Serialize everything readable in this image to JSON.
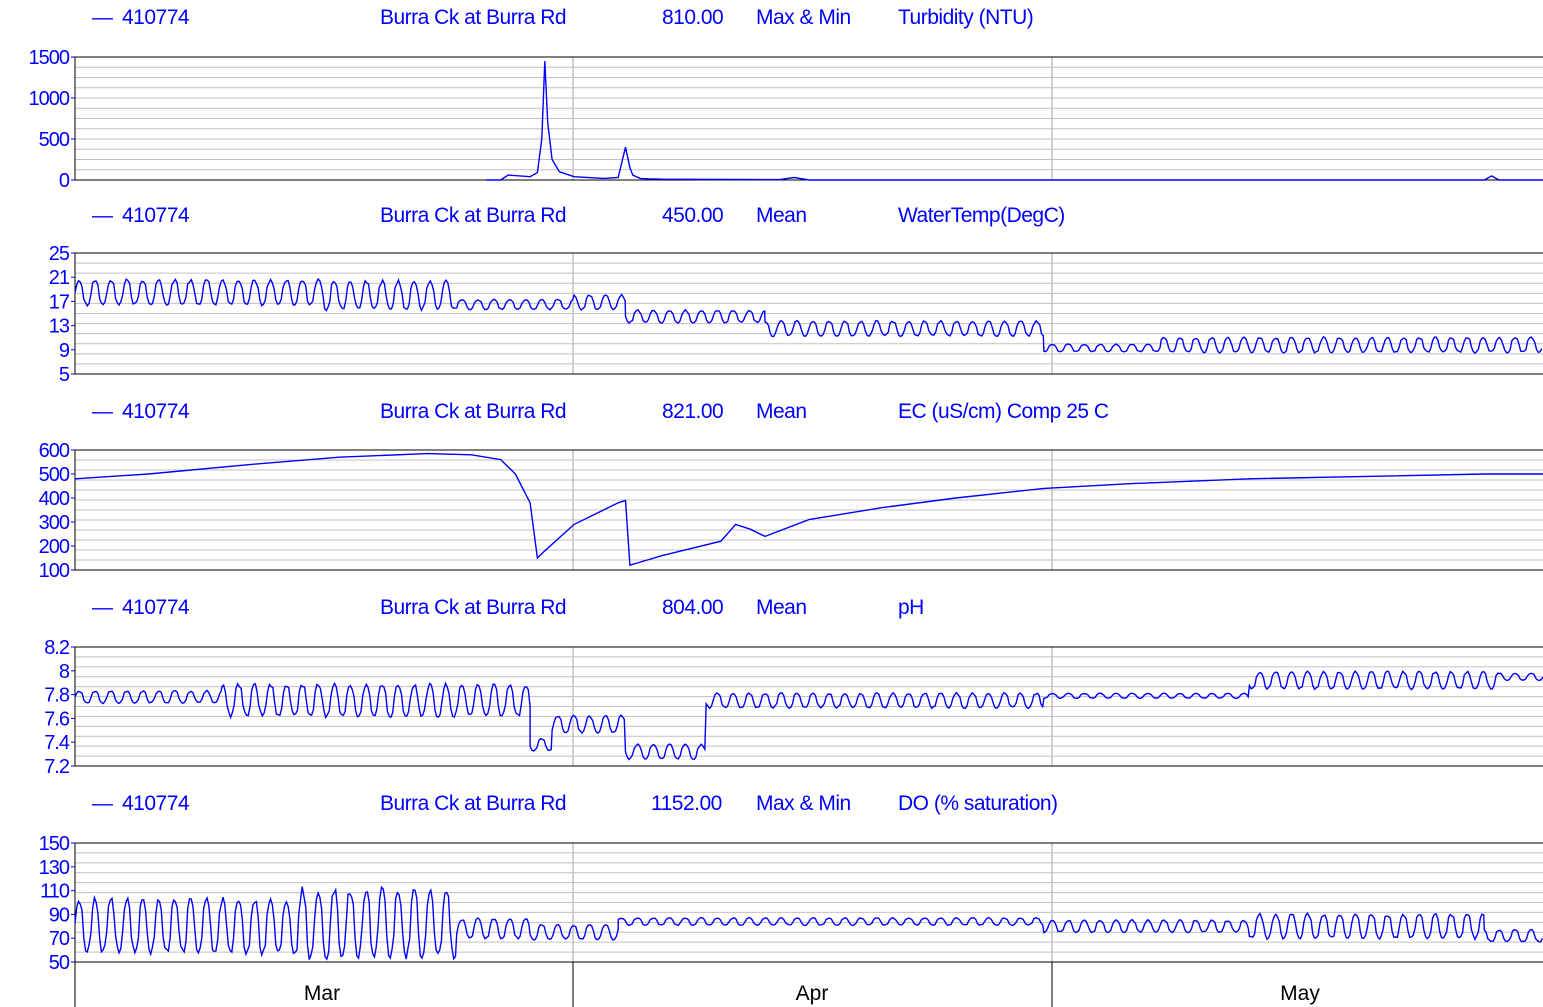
{
  "colors": {
    "series": "#0000ff",
    "grid": "#c0c0c0",
    "frame": "#000000",
    "text": "#0000ff"
  },
  "time_axis": {
    "labels": [
      "Mar",
      "Apr",
      "May"
    ]
  },
  "chart_data": [
    {
      "type": "line",
      "header": {
        "marker": "—",
        "site_id": "410774",
        "site_name": "Burra Ck at Burra Rd",
        "code": "810.00",
        "stat": "Max & Min",
        "variable": "Turbidity (NTU)"
      },
      "ylim": [
        0,
        1500
      ],
      "yticks": [
        "1500",
        "1000",
        "500",
        "0"
      ],
      "ytick_values": [
        1500,
        1000,
        500,
        0
      ],
      "x": [
        0.28,
        0.29,
        0.295,
        0.31,
        0.315,
        0.318,
        0.32,
        0.322,
        0.325,
        0.33,
        0.34,
        0.36,
        0.37,
        0.375,
        0.378,
        0.38,
        0.385,
        0.39,
        0.4,
        0.42,
        0.45,
        0.48,
        0.49,
        0.5,
        0.75,
        0.96,
        0.965,
        0.97,
        1.0
      ],
      "values": [
        0,
        0,
        60,
        40,
        90,
        500,
        1450,
        700,
        250,
        100,
        40,
        20,
        30,
        400,
        150,
        60,
        20,
        15,
        10,
        8,
        6,
        5,
        30,
        0,
        0,
        0,
        50,
        0,
        0
      ]
    },
    {
      "type": "line",
      "header": {
        "marker": "—",
        "site_id": "410774",
        "site_name": "Burra Ck at Burra Rd",
        "code": "450.00",
        "stat": "Mean",
        "variable": "WaterTemp(DegC)"
      },
      "ylim": [
        5,
        25
      ],
      "yticks": [
        "25",
        "21",
        "17",
        "13",
        "9",
        "5"
      ],
      "ytick_values": [
        25,
        21,
        17,
        13,
        9,
        5
      ],
      "segments": [
        {
          "x0": 0.0,
          "x1": 0.17,
          "base": 18.5,
          "amp": 2.0
        },
        {
          "x0": 0.17,
          "x1": 0.26,
          "base": 18.0,
          "amp": 2.3
        },
        {
          "x0": 0.26,
          "x1": 0.34,
          "base": 16.5,
          "amp": 0.8
        },
        {
          "x0": 0.34,
          "x1": 0.375,
          "base": 16.8,
          "amp": 1.2
        },
        {
          "x0": 0.375,
          "x1": 0.47,
          "base": 14.5,
          "amp": 1.0
        },
        {
          "x0": 0.47,
          "x1": 0.66,
          "base": 12.5,
          "amp": 1.2
        },
        {
          "x0": 0.66,
          "x1": 0.74,
          "base": 9.3,
          "amp": 0.6
        },
        {
          "x0": 0.74,
          "x1": 1.0,
          "base": 9.8,
          "amp": 1.2
        }
      ]
    },
    {
      "type": "line",
      "header": {
        "marker": "—",
        "site_id": "410774",
        "site_name": "Burra Ck at Burra Rd",
        "code": "821.00",
        "stat": "Mean",
        "variable": "EC (uS/cm) Comp 25 C"
      },
      "ylim": [
        100,
        600
      ],
      "yticks": [
        "600",
        "500",
        "400",
        "300",
        "200",
        "100"
      ],
      "ytick_values": [
        600,
        500,
        400,
        300,
        200,
        100
      ],
      "x": [
        0.0,
        0.05,
        0.12,
        0.18,
        0.24,
        0.27,
        0.29,
        0.3,
        0.31,
        0.315,
        0.32,
        0.34,
        0.37,
        0.375,
        0.378,
        0.4,
        0.44,
        0.45,
        0.46,
        0.47,
        0.5,
        0.55,
        0.6,
        0.66,
        0.72,
        0.8,
        0.88,
        0.96,
        1.0
      ],
      "values": [
        480,
        500,
        540,
        570,
        585,
        580,
        560,
        500,
        380,
        150,
        180,
        290,
        380,
        390,
        120,
        160,
        220,
        290,
        270,
        240,
        310,
        360,
        400,
        440,
        460,
        480,
        490,
        500,
        500
      ]
    },
    {
      "type": "line",
      "header": {
        "marker": "—",
        "site_id": "410774",
        "site_name": "Burra Ck at Burra Rd",
        "code": "804.00",
        "stat": "Mean",
        "variable": "pH"
      },
      "ylim": [
        7.2,
        8.2
      ],
      "yticks": [
        "8.2",
        "8",
        "7.8",
        "7.6",
        "7.4",
        "7.2"
      ],
      "ytick_values": [
        8.2,
        8.0,
        7.8,
        7.6,
        7.4,
        7.2
      ],
      "segments": [
        {
          "x0": 0.0,
          "x1": 0.1,
          "base": 7.78,
          "amp": 0.05
        },
        {
          "x0": 0.1,
          "x1": 0.31,
          "base": 7.75,
          "amp": 0.13
        },
        {
          "x0": 0.31,
          "x1": 0.325,
          "base": 7.38,
          "amp": 0.05
        },
        {
          "x0": 0.325,
          "x1": 0.375,
          "base": 7.55,
          "amp": 0.07
        },
        {
          "x0": 0.375,
          "x1": 0.43,
          "base": 7.32,
          "amp": 0.06
        },
        {
          "x0": 0.43,
          "x1": 0.66,
          "base": 7.75,
          "amp": 0.06
        },
        {
          "x0": 0.66,
          "x1": 0.8,
          "base": 7.79,
          "amp": 0.02
        },
        {
          "x0": 0.8,
          "x1": 0.97,
          "base": 7.92,
          "amp": 0.07
        },
        {
          "x0": 0.97,
          "x1": 1.0,
          "base": 7.95,
          "amp": 0.03
        }
      ]
    },
    {
      "type": "line",
      "header": {
        "marker": "—",
        "site_id": "410774",
        "site_name": "Burra Ck at Burra Rd",
        "code": "1152.00",
        "stat": "Max & Min",
        "variable": "DO (% saturation)"
      },
      "ylim": [
        50,
        150
      ],
      "yticks": [
        "150",
        "130",
        "110",
        "90",
        "70",
        "50"
      ],
      "ytick_values": [
        150,
        130,
        110,
        90,
        70,
        50
      ],
      "segments": [
        {
          "x0": 0.0,
          "x1": 0.15,
          "base": 80,
          "amp": 22
        },
        {
          "x0": 0.15,
          "x1": 0.26,
          "base": 82,
          "amp": 28
        },
        {
          "x0": 0.26,
          "x1": 0.31,
          "base": 78,
          "amp": 8
        },
        {
          "x0": 0.31,
          "x1": 0.37,
          "base": 75,
          "amp": 6
        },
        {
          "x0": 0.37,
          "x1": 0.66,
          "base": 84,
          "amp": 3
        },
        {
          "x0": 0.66,
          "x1": 0.8,
          "base": 80,
          "amp": 5
        },
        {
          "x0": 0.8,
          "x1": 0.96,
          "base": 80,
          "amp": 10
        },
        {
          "x0": 0.96,
          "x1": 1.0,
          "base": 72,
          "amp": 5
        }
      ]
    }
  ]
}
